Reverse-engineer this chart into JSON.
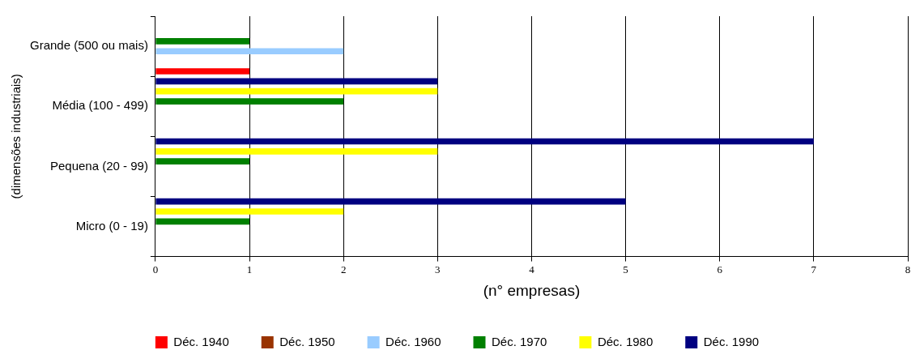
{
  "chart_data": {
    "type": "bar",
    "orientation": "horizontal",
    "xlabel": "(n° empresas)",
    "ylabel": "(dimensões industriais)",
    "categories": [
      "Grande (500 ou mais)",
      "Média (100 - 499)",
      "Pequena (20 - 99)",
      "Micro (0 - 19)"
    ],
    "series": [
      {
        "name": "Déc. 1940",
        "color": "#ff0000",
        "values": [
          1,
          0,
          0,
          0
        ]
      },
      {
        "name": "Déc. 1950",
        "color": "#993300",
        "values": [
          0,
          0,
          0,
          0
        ]
      },
      {
        "name": "Déc. 1960",
        "color": "#99ccff",
        "values": [
          2,
          0,
          0,
          0
        ]
      },
      {
        "name": "Déc. 1970",
        "color": "#008000",
        "values": [
          1,
          2,
          1,
          1
        ]
      },
      {
        "name": "Déc. 1980",
        "color": "#ffff00",
        "values": [
          0,
          3,
          3,
          2
        ]
      },
      {
        "name": "Déc. 1990",
        "color": "#000080",
        "values": [
          0,
          3,
          7,
          5
        ]
      }
    ],
    "xlim": [
      0,
      8
    ],
    "xticks": [
      0,
      1,
      2,
      3,
      4,
      5,
      6,
      7,
      8
    ],
    "grid": "x",
    "legend": "bottom"
  }
}
